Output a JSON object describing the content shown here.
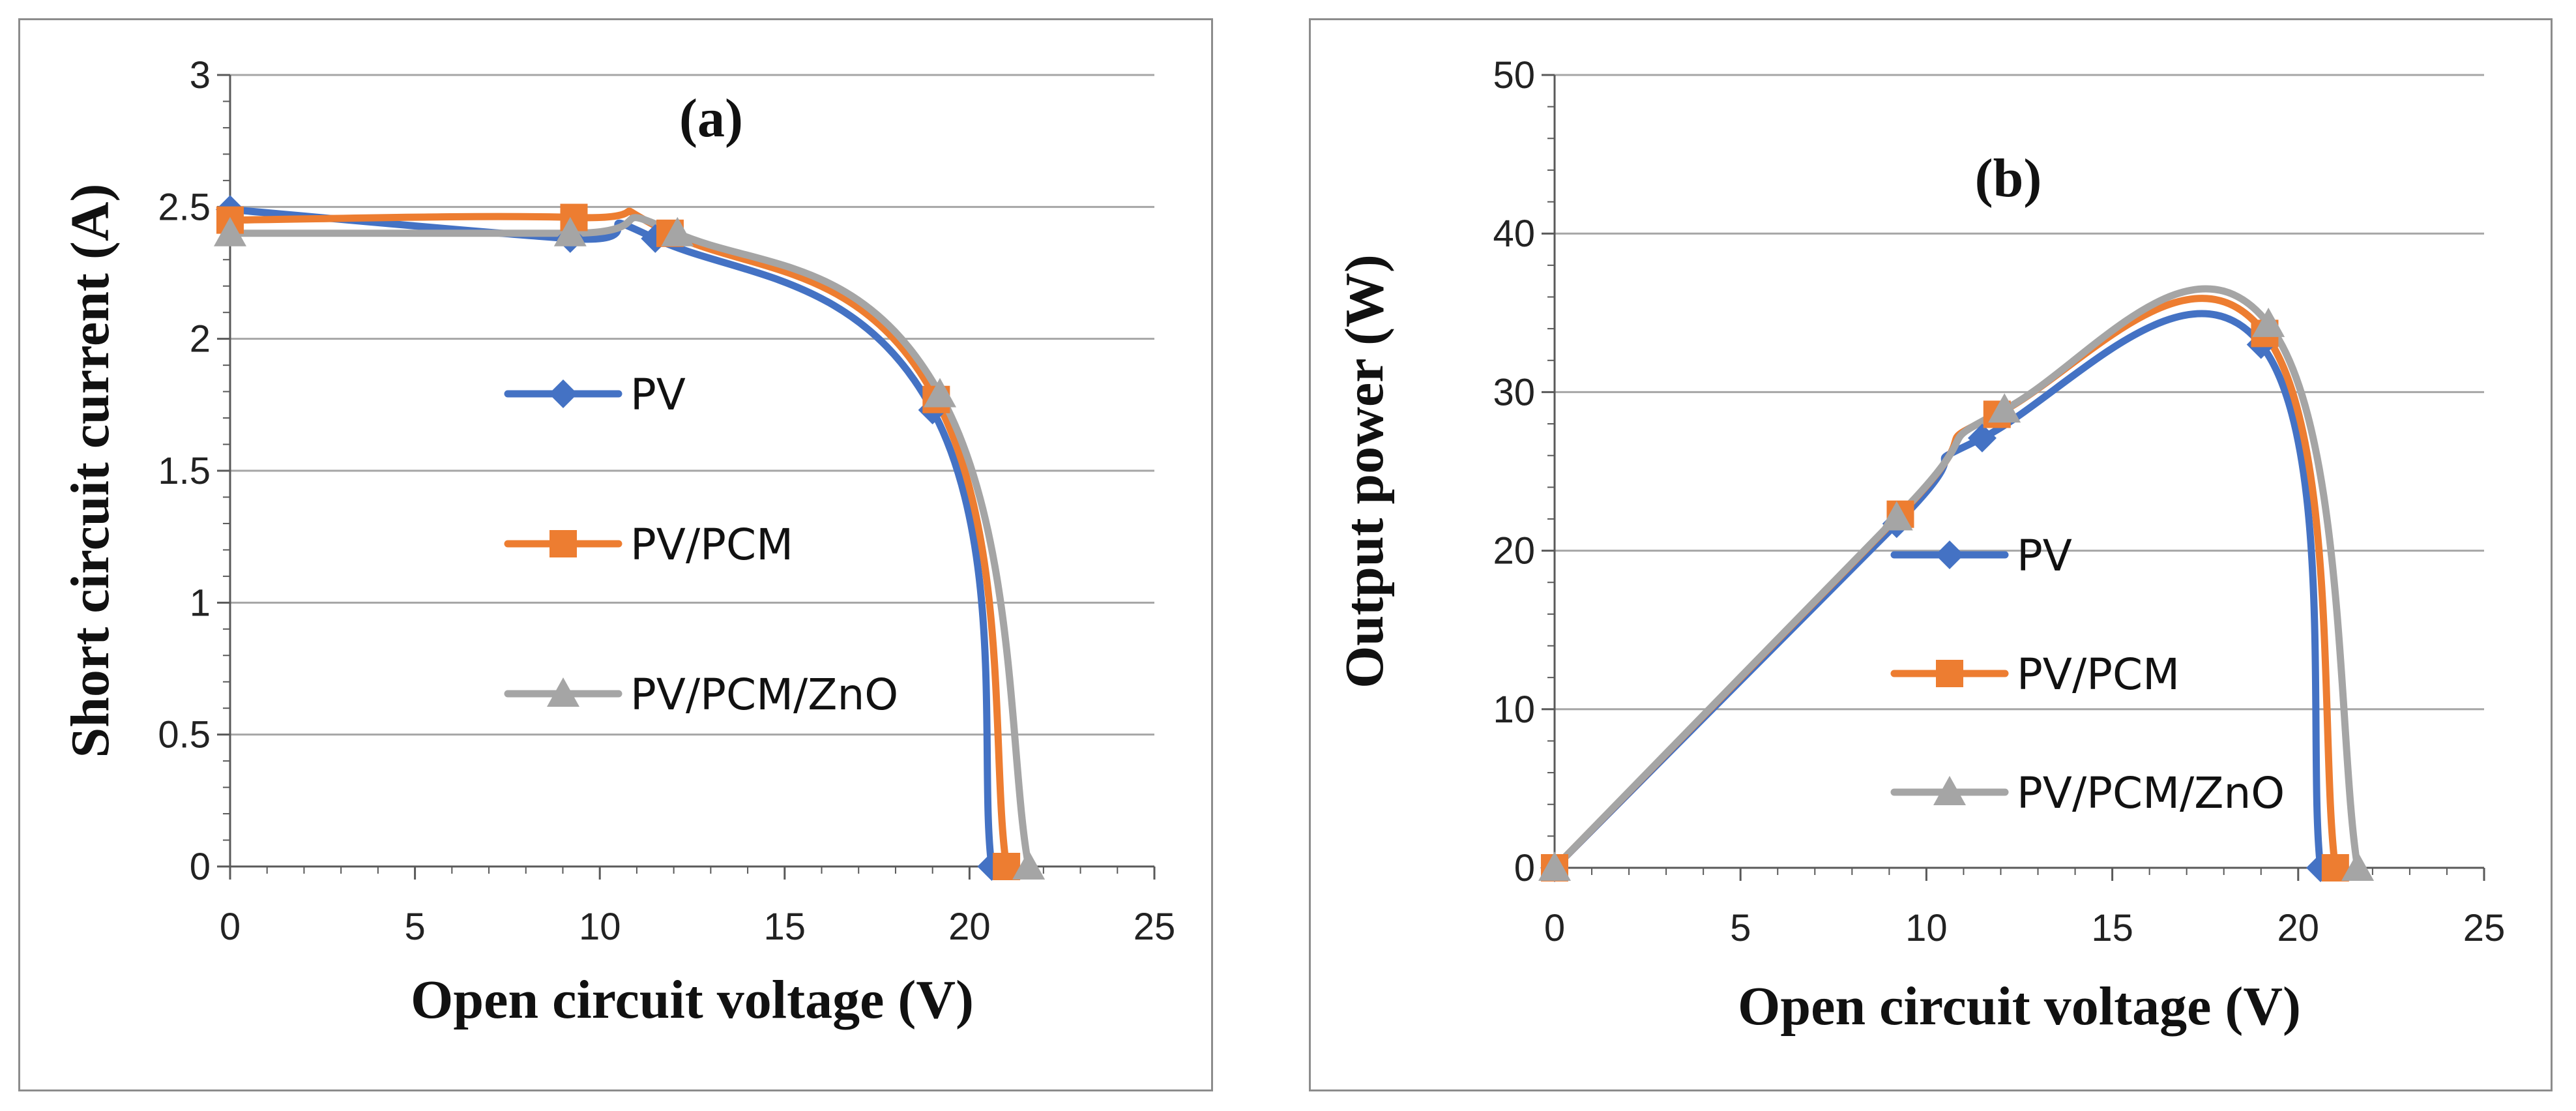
{
  "chart_data": [
    {
      "type": "line",
      "panel_label": "(a)",
      "xlabel": "Open circuit voltage (V)",
      "ylabel": "Short circuit current (A)",
      "xlim": [
        0,
        25
      ],
      "ylim": [
        0,
        3
      ],
      "xticks": [
        "0",
        "5",
        "10",
        "15",
        "20",
        "25"
      ],
      "yticks": [
        "0",
        "0.5",
        "1",
        "1.5",
        "2",
        "2.5",
        "3"
      ],
      "grid": true,
      "legend_position": "center",
      "series": [
        {
          "name": "PV",
          "color": "#4472C4",
          "marker": "diamond",
          "x": [
            0,
            9.2,
            11.5,
            19.0,
            20.6
          ],
          "y": [
            2.49,
            2.38,
            2.38,
            1.73,
            0
          ]
        },
        {
          "name": "PV/PCM",
          "color": "#ED7D31",
          "marker": "square",
          "x": [
            0,
            9.3,
            11.9,
            19.1,
            21.0
          ],
          "y": [
            2.45,
            2.46,
            2.4,
            1.77,
            0
          ]
        },
        {
          "name": "PV/PCM/ZnO",
          "color": "#A5A5A5",
          "marker": "triangle",
          "x": [
            0,
            9.2,
            12.1,
            19.2,
            21.6
          ],
          "y": [
            2.4,
            2.4,
            2.4,
            1.79,
            0
          ]
        }
      ]
    },
    {
      "type": "line",
      "panel_label": "(b)",
      "xlabel": "Open circuit voltage (V)",
      "ylabel": "Output power (W)",
      "xlim": [
        0,
        25
      ],
      "ylim": [
        0,
        50
      ],
      "xticks": [
        "0",
        "5",
        "10",
        "15",
        "20",
        "25"
      ],
      "yticks": [
        "0",
        "10",
        "20",
        "30",
        "40",
        "50"
      ],
      "grid": true,
      "legend_position": "center-right",
      "series": [
        {
          "name": "PV",
          "color": "#4472C4",
          "marker": "diamond",
          "x": [
            0,
            9.2,
            11.5,
            19.0,
            20.6
          ],
          "y": [
            0,
            21.7,
            27.1,
            33.0,
            0
          ]
        },
        {
          "name": "PV/PCM",
          "color": "#ED7D31",
          "marker": "square",
          "x": [
            0,
            9.3,
            11.9,
            19.1,
            21.0
          ],
          "y": [
            0,
            22.3,
            28.6,
            33.7,
            0
          ]
        },
        {
          "name": "PV/PCM/ZnO",
          "color": "#A5A5A5",
          "marker": "triangle",
          "x": [
            0,
            9.2,
            12.1,
            19.2,
            21.6
          ],
          "y": [
            0,
            22.1,
            28.9,
            34.3,
            0
          ]
        }
      ]
    }
  ]
}
